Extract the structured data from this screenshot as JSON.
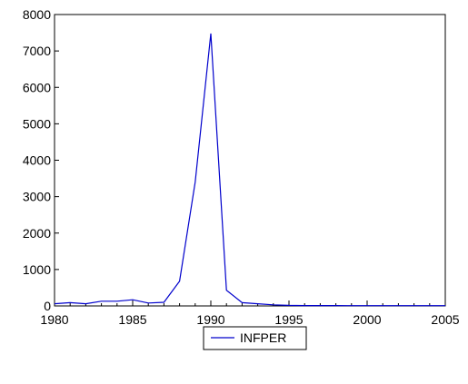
{
  "chart_data": {
    "type": "line",
    "title": "",
    "xlabel": "",
    "ylabel": "",
    "xlim": [
      1980,
      2005
    ],
    "ylim": [
      0,
      8000
    ],
    "x_ticks": [
      1980,
      1985,
      1990,
      1995,
      2000,
      2005
    ],
    "y_ticks": [
      0,
      1000,
      2000,
      3000,
      4000,
      5000,
      6000,
      7000,
      8000
    ],
    "grid": false,
    "legend_position": "bottom-center",
    "series": [
      {
        "name": "INFPER",
        "color": "#0000cc",
        "x": [
          1980,
          1981,
          1982,
          1983,
          1984,
          1985,
          1986,
          1987,
          1988,
          1989,
          1990,
          1991,
          1992,
          1993,
          1994,
          1995,
          1996,
          1997,
          1998,
          1999,
          2000,
          2001,
          2002,
          2003,
          2004,
          2005
        ],
        "y": [
          60,
          90,
          60,
          130,
          130,
          170,
          80,
          100,
          680,
          3400,
          7480,
          430,
          90,
          60,
          30,
          15,
          10,
          10,
          10,
          8,
          8,
          8,
          8,
          8,
          8,
          8
        ]
      }
    ]
  }
}
